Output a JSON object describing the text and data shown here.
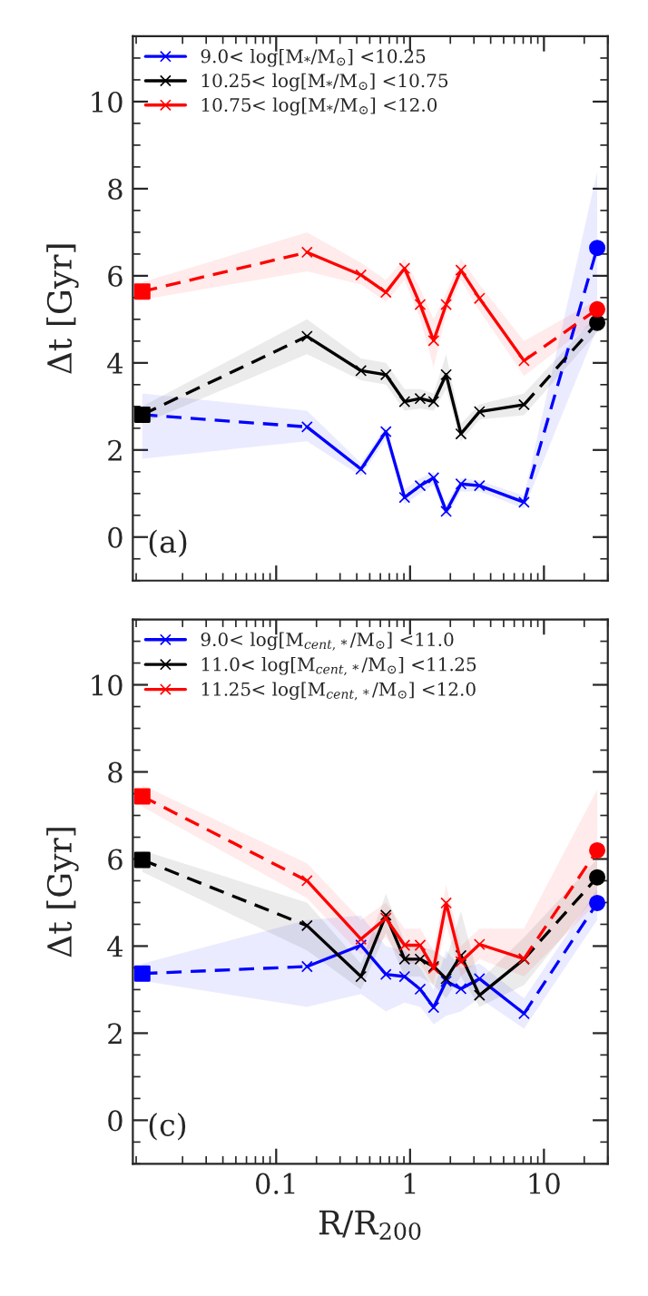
{
  "chart_data": [
    {
      "type": "line",
      "log": "x",
      "xlim": [
        0.0085,
        30
      ],
      "ylim": [
        -1,
        11.5
      ],
      "yticks": [
        0,
        2,
        4,
        6,
        8,
        10
      ],
      "xticks": [
        {
          "value": 0.1,
          "label": null
        },
        {
          "value": 1,
          "label": null
        },
        {
          "value": 10,
          "label": null
        }
      ],
      "tick_labels": "y",
      "ylabel": "Δt [Gyr]",
      "annotations": [
        "(a)"
      ],
      "legend": "top left",
      "grid": false,
      "x": [
        0.01,
        0.17,
        0.43,
        0.66,
        0.91,
        1.19,
        1.5,
        1.86,
        2.4,
        3.3,
        7.1,
        25
      ],
      "series": [
        {
          "name": "9.0< log[M$_{*}$/M$_{⊙}$] <10.25",
          "color": "#0000ff",
          "marker": "cross",
          "line_style": "solid",
          "values": [
            null,
            2.53,
            1.56,
            2.42,
            0.91,
            1.18,
            1.36,
            0.59,
            1.22,
            1.18,
            0.8,
            null
          ],
          "lower": [
            1.8,
            2.2,
            1.4,
            2.25,
            0.75,
            1.0,
            1.2,
            0.45,
            1.05,
            1.05,
            0.65,
            4.8
          ],
          "upper": [
            3.3,
            2.9,
            1.7,
            2.55,
            1.1,
            1.35,
            1.5,
            0.75,
            1.35,
            1.3,
            0.95,
            8.4
          ]
        },
        {
          "color": "#0000ff",
          "marker": "none",
          "line_style": "dashed",
          "values": [
            2.81,
            2.53,
            null,
            null,
            null,
            null,
            null,
            null,
            null,
            null,
            0.8,
            6.64
          ]
        },
        {
          "type": "scatter",
          "color": "#0000ff",
          "marker": "circle",
          "values": [
            null,
            null,
            null,
            null,
            null,
            null,
            null,
            null,
            null,
            null,
            null,
            6.64
          ]
        },
        {
          "name": "10.25< log[M$_{*}$/M$_{⊙}$] <10.75",
          "color": "#000000",
          "marker": "cross",
          "line_style": "solid",
          "values": [
            null,
            4.61,
            3.82,
            3.73,
            3.11,
            3.18,
            3.11,
            3.73,
            2.37,
            2.88,
            3.04,
            null
          ],
          "lower": [
            2.6,
            4.2,
            3.6,
            3.5,
            2.9,
            2.95,
            2.9,
            3.4,
            2.2,
            2.7,
            2.8,
            4.7
          ],
          "upper": [
            3.0,
            5.0,
            4.1,
            4.0,
            3.4,
            3.4,
            3.3,
            4.2,
            2.6,
            3.05,
            3.3,
            5.1
          ]
        },
        {
          "color": "#000000",
          "marker": "none",
          "line_style": "dashed",
          "values": [
            2.81,
            4.61,
            null,
            null,
            null,
            null,
            null,
            null,
            null,
            null,
            3.04,
            4.92
          ]
        },
        {
          "type": "scatter",
          "color": "#000000",
          "marker": "square",
          "values": [
            2.81,
            null,
            null,
            null,
            null,
            null,
            null,
            null,
            null,
            null,
            null,
            null
          ]
        },
        {
          "type": "scatter",
          "color": "#000000",
          "marker": "circle",
          "values": [
            null,
            null,
            null,
            null,
            null,
            null,
            null,
            null,
            null,
            null,
            null,
            4.92
          ]
        },
        {
          "name": "10.75< log[M$_{*}$/M$_{⊙}$] <12.0",
          "color": "#ff0000",
          "marker": "cross",
          "line_style": "solid",
          "values": [
            null,
            6.54,
            6.02,
            5.62,
            6.17,
            5.34,
            4.51,
            5.34,
            6.13,
            5.48,
            4.05,
            null
          ],
          "lower": [
            5.45,
            6.1,
            5.8,
            5.4,
            5.9,
            5.0,
            3.9,
            5.1,
            5.9,
            5.2,
            3.7,
            5.0
          ],
          "upper": [
            5.85,
            7.0,
            6.3,
            5.9,
            6.4,
            5.7,
            5.0,
            5.6,
            6.4,
            5.8,
            4.5,
            5.45
          ]
        },
        {
          "color": "#ff0000",
          "marker": "none",
          "line_style": "dashed",
          "values": [
            5.64,
            6.54,
            null,
            null,
            null,
            null,
            null,
            null,
            null,
            null,
            4.05,
            5.23
          ]
        },
        {
          "type": "scatter",
          "color": "#ff0000",
          "marker": "square",
          "values": [
            5.64,
            null,
            null,
            null,
            null,
            null,
            null,
            null,
            null,
            null,
            null,
            null
          ]
        },
        {
          "type": "scatter",
          "color": "#ff0000",
          "marker": "circle",
          "values": [
            null,
            null,
            null,
            null,
            null,
            null,
            null,
            null,
            null,
            null,
            null,
            5.23
          ]
        }
      ]
    },
    {
      "type": "line",
      "log": "x",
      "xlim": [
        0.0085,
        30
      ],
      "ylim": [
        -1,
        11.5
      ],
      "yticks": [
        0,
        2,
        4,
        6,
        8,
        10
      ],
      "xticks": [
        {
          "value": 0.1,
          "label": "0.1"
        },
        1,
        10
      ],
      "xlabel": "R/R$_{200}$",
      "ylabel": "Δt [Gyr]",
      "annotations": [
        "(c)"
      ],
      "legend": "top left",
      "grid": false,
      "x": [
        0.01,
        0.17,
        0.43,
        0.66,
        0.91,
        1.19,
        1.5,
        1.86,
        2.4,
        3.3,
        7.1,
        25
      ],
      "series": [
        {
          "name": "9.0< log[M$_{cent,*}$/M$_{⊙}$] <11.0",
          "color": "#0000ff",
          "marker": "cross",
          "line_style": "solid",
          "values": [
            null,
            3.53,
            4.02,
            3.35,
            3.3,
            3.01,
            2.59,
            3.19,
            3.02,
            3.25,
            2.45,
            null
          ],
          "lower": [
            3.2,
            2.6,
            2.9,
            2.5,
            2.7,
            2.6,
            2.2,
            2.4,
            2.5,
            2.8,
            2.1,
            4.6
          ],
          "upper": [
            3.6,
            4.6,
            4.7,
            4.0,
            3.9,
            3.5,
            3.0,
            3.9,
            3.5,
            3.6,
            2.8,
            5.3
          ]
        },
        {
          "color": "#0000ff",
          "marker": "none",
          "line_style": "dashed",
          "values": [
            3.37,
            3.53,
            null,
            null,
            null,
            null,
            null,
            null,
            null,
            null,
            2.45,
            4.99
          ]
        },
        {
          "type": "scatter",
          "color": "#0000ff",
          "marker": "square",
          "values": [
            3.37,
            null,
            null,
            null,
            null,
            null,
            null,
            null,
            null,
            null,
            null,
            null
          ]
        },
        {
          "type": "scatter",
          "color": "#0000ff",
          "marker": "circle",
          "values": [
            null,
            null,
            null,
            null,
            null,
            null,
            null,
            null,
            null,
            null,
            null,
            4.99
          ]
        },
        {
          "name": "11.0< log[M$_{cent,*}$/M$_{⊙}$] <11.25",
          "color": "#000000",
          "marker": "cross",
          "line_style": "solid",
          "values": [
            null,
            4.47,
            3.3,
            4.71,
            3.7,
            3.7,
            3.53,
            3.25,
            3.78,
            2.87,
            3.7,
            null
          ],
          "lower": [
            5.7,
            3.9,
            3.0,
            4.3,
            3.3,
            3.3,
            3.1,
            2.8,
            3.3,
            2.6,
            3.1,
            5.2
          ],
          "upper": [
            6.2,
            5.0,
            3.6,
            5.2,
            4.1,
            4.0,
            3.9,
            3.7,
            4.8,
            3.2,
            4.2,
            6.0
          ]
        },
        {
          "color": "#000000",
          "marker": "none",
          "line_style": "dashed",
          "values": [
            5.98,
            4.47,
            null,
            null,
            null,
            null,
            null,
            null,
            null,
            null,
            3.7,
            5.58
          ]
        },
        {
          "type": "scatter",
          "color": "#000000",
          "marker": "square",
          "values": [
            5.98,
            null,
            null,
            null,
            null,
            null,
            null,
            null,
            null,
            null,
            null,
            null
          ]
        },
        {
          "type": "scatter",
          "color": "#000000",
          "marker": "circle",
          "values": [
            null,
            null,
            null,
            null,
            null,
            null,
            null,
            null,
            null,
            null,
            null,
            5.58
          ]
        },
        {
          "name": "11.25< log[M$_{cent,*}$/M$_{⊙}$] <12.0",
          "color": "#ff0000",
          "marker": "cross",
          "line_style": "solid",
          "values": [
            null,
            5.5,
            4.16,
            4.64,
            4.02,
            4.02,
            3.49,
            4.99,
            3.64,
            4.04,
            3.71,
            null
          ],
          "lower": [
            7.2,
            5.1,
            3.8,
            4.2,
            3.6,
            3.6,
            3.1,
            4.5,
            3.3,
            3.7,
            3.3,
            5.0
          ],
          "upper": [
            7.7,
            5.9,
            4.6,
            5.0,
            4.4,
            4.4,
            3.9,
            5.4,
            4.0,
            4.4,
            4.4,
            7.6
          ]
        },
        {
          "color": "#ff0000",
          "marker": "none",
          "line_style": "dashed",
          "values": [
            7.44,
            5.5,
            null,
            null,
            null,
            null,
            null,
            null,
            null,
            null,
            3.71,
            6.2
          ]
        },
        {
          "type": "scatter",
          "color": "#ff0000",
          "marker": "square",
          "values": [
            7.44,
            null,
            null,
            null,
            null,
            null,
            null,
            null,
            null,
            null,
            null,
            null
          ]
        },
        {
          "type": "scatter",
          "color": "#ff0000",
          "marker": "circle",
          "values": [
            null,
            null,
            null,
            null,
            null,
            null,
            null,
            null,
            null,
            null,
            null,
            6.2
          ]
        }
      ]
    }
  ]
}
